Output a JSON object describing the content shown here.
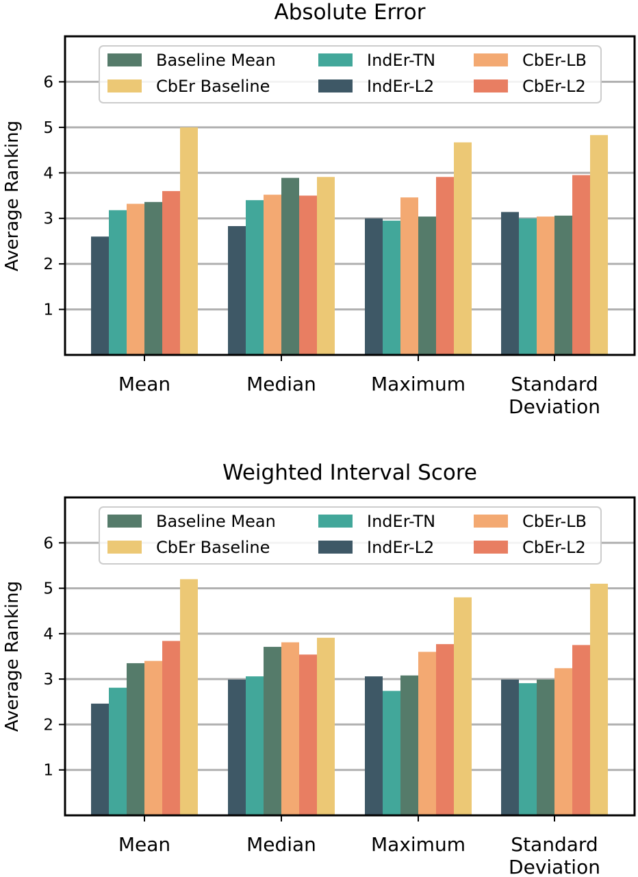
{
  "chart_data": [
    {
      "type": "bar",
      "title": "Absolute Error",
      "xlabel": "",
      "ylabel": "Average Ranking",
      "ylim": [
        0,
        7
      ],
      "yticks": [
        1,
        2,
        3,
        4,
        5,
        6
      ],
      "grid": "horizontal",
      "legend_position": "top",
      "categories": [
        [
          "Mean"
        ],
        [
          "Median"
        ],
        [
          "Maximum"
        ],
        [
          "Standard",
          "Deviation"
        ]
      ],
      "series": [
        {
          "name": "IndEr-L2",
          "values": [
            2.6,
            2.83,
            3.0,
            3.14
          ]
        },
        {
          "name": "IndEr-TN",
          "values": [
            3.18,
            3.4,
            2.95,
            3.0
          ]
        },
        {
          "name": "CbEr-LB",
          "values": [
            3.32,
            3.52,
            3.46,
            3.04
          ]
        },
        {
          "name": "Baseline Mean",
          "values": [
            3.36,
            3.89,
            3.04,
            3.06
          ]
        },
        {
          "name": "CbEr-L2",
          "values": [
            3.6,
            3.5,
            3.91,
            3.95
          ]
        },
        {
          "name": "CbEr Baseline",
          "values": [
            5.0,
            3.91,
            4.67,
            4.83
          ]
        }
      ]
    },
    {
      "type": "bar",
      "title": "Weighted Interval Score",
      "xlabel": "",
      "ylabel": "Average Ranking",
      "ylim": [
        0,
        7
      ],
      "yticks": [
        1,
        2,
        3,
        4,
        5,
        6
      ],
      "grid": "horizontal",
      "legend_position": "top",
      "categories": [
        [
          "Mean"
        ],
        [
          "Median"
        ],
        [
          "Maximum"
        ],
        [
          "Standard",
          "Deviation"
        ]
      ],
      "series": [
        {
          "name": "IndEr-L2",
          "values": [
            2.46,
            2.99,
            3.06,
            2.99
          ]
        },
        {
          "name": "IndEr-TN",
          "values": [
            2.81,
            3.06,
            2.74,
            2.91
          ]
        },
        {
          "name": "Baseline Mean",
          "values": [
            3.35,
            3.71,
            3.08,
            2.99
          ]
        },
        {
          "name": "CbEr-LB",
          "values": [
            3.4,
            3.81,
            3.6,
            3.24
          ]
        },
        {
          "name": "CbEr-L2",
          "values": [
            3.84,
            3.54,
            3.77,
            3.75
          ]
        },
        {
          "name": "CbEr Baseline",
          "values": [
            5.2,
            3.91,
            4.8,
            5.1
          ]
        }
      ]
    }
  ],
  "legend": {
    "entries": [
      {
        "label": "Baseline Mean",
        "color": "#557b6a"
      },
      {
        "label": "IndEr-TN",
        "color": "#42a79a"
      },
      {
        "label": "CbEr-LB",
        "color": "#f3a972"
      },
      {
        "label": "CbEr Baseline",
        "color": "#ecc875"
      },
      {
        "label": "IndEr-L2",
        "color": "#3e5866"
      },
      {
        "label": "CbEr-L2",
        "color": "#e87e62"
      }
    ]
  },
  "colors": {
    "Baseline Mean": "#557b6a",
    "IndEr-TN": "#42a79a",
    "CbEr-LB": "#f3a972",
    "CbEr Baseline": "#ecc875",
    "IndEr-L2": "#3e5866",
    "CbEr-L2": "#e87e62"
  }
}
